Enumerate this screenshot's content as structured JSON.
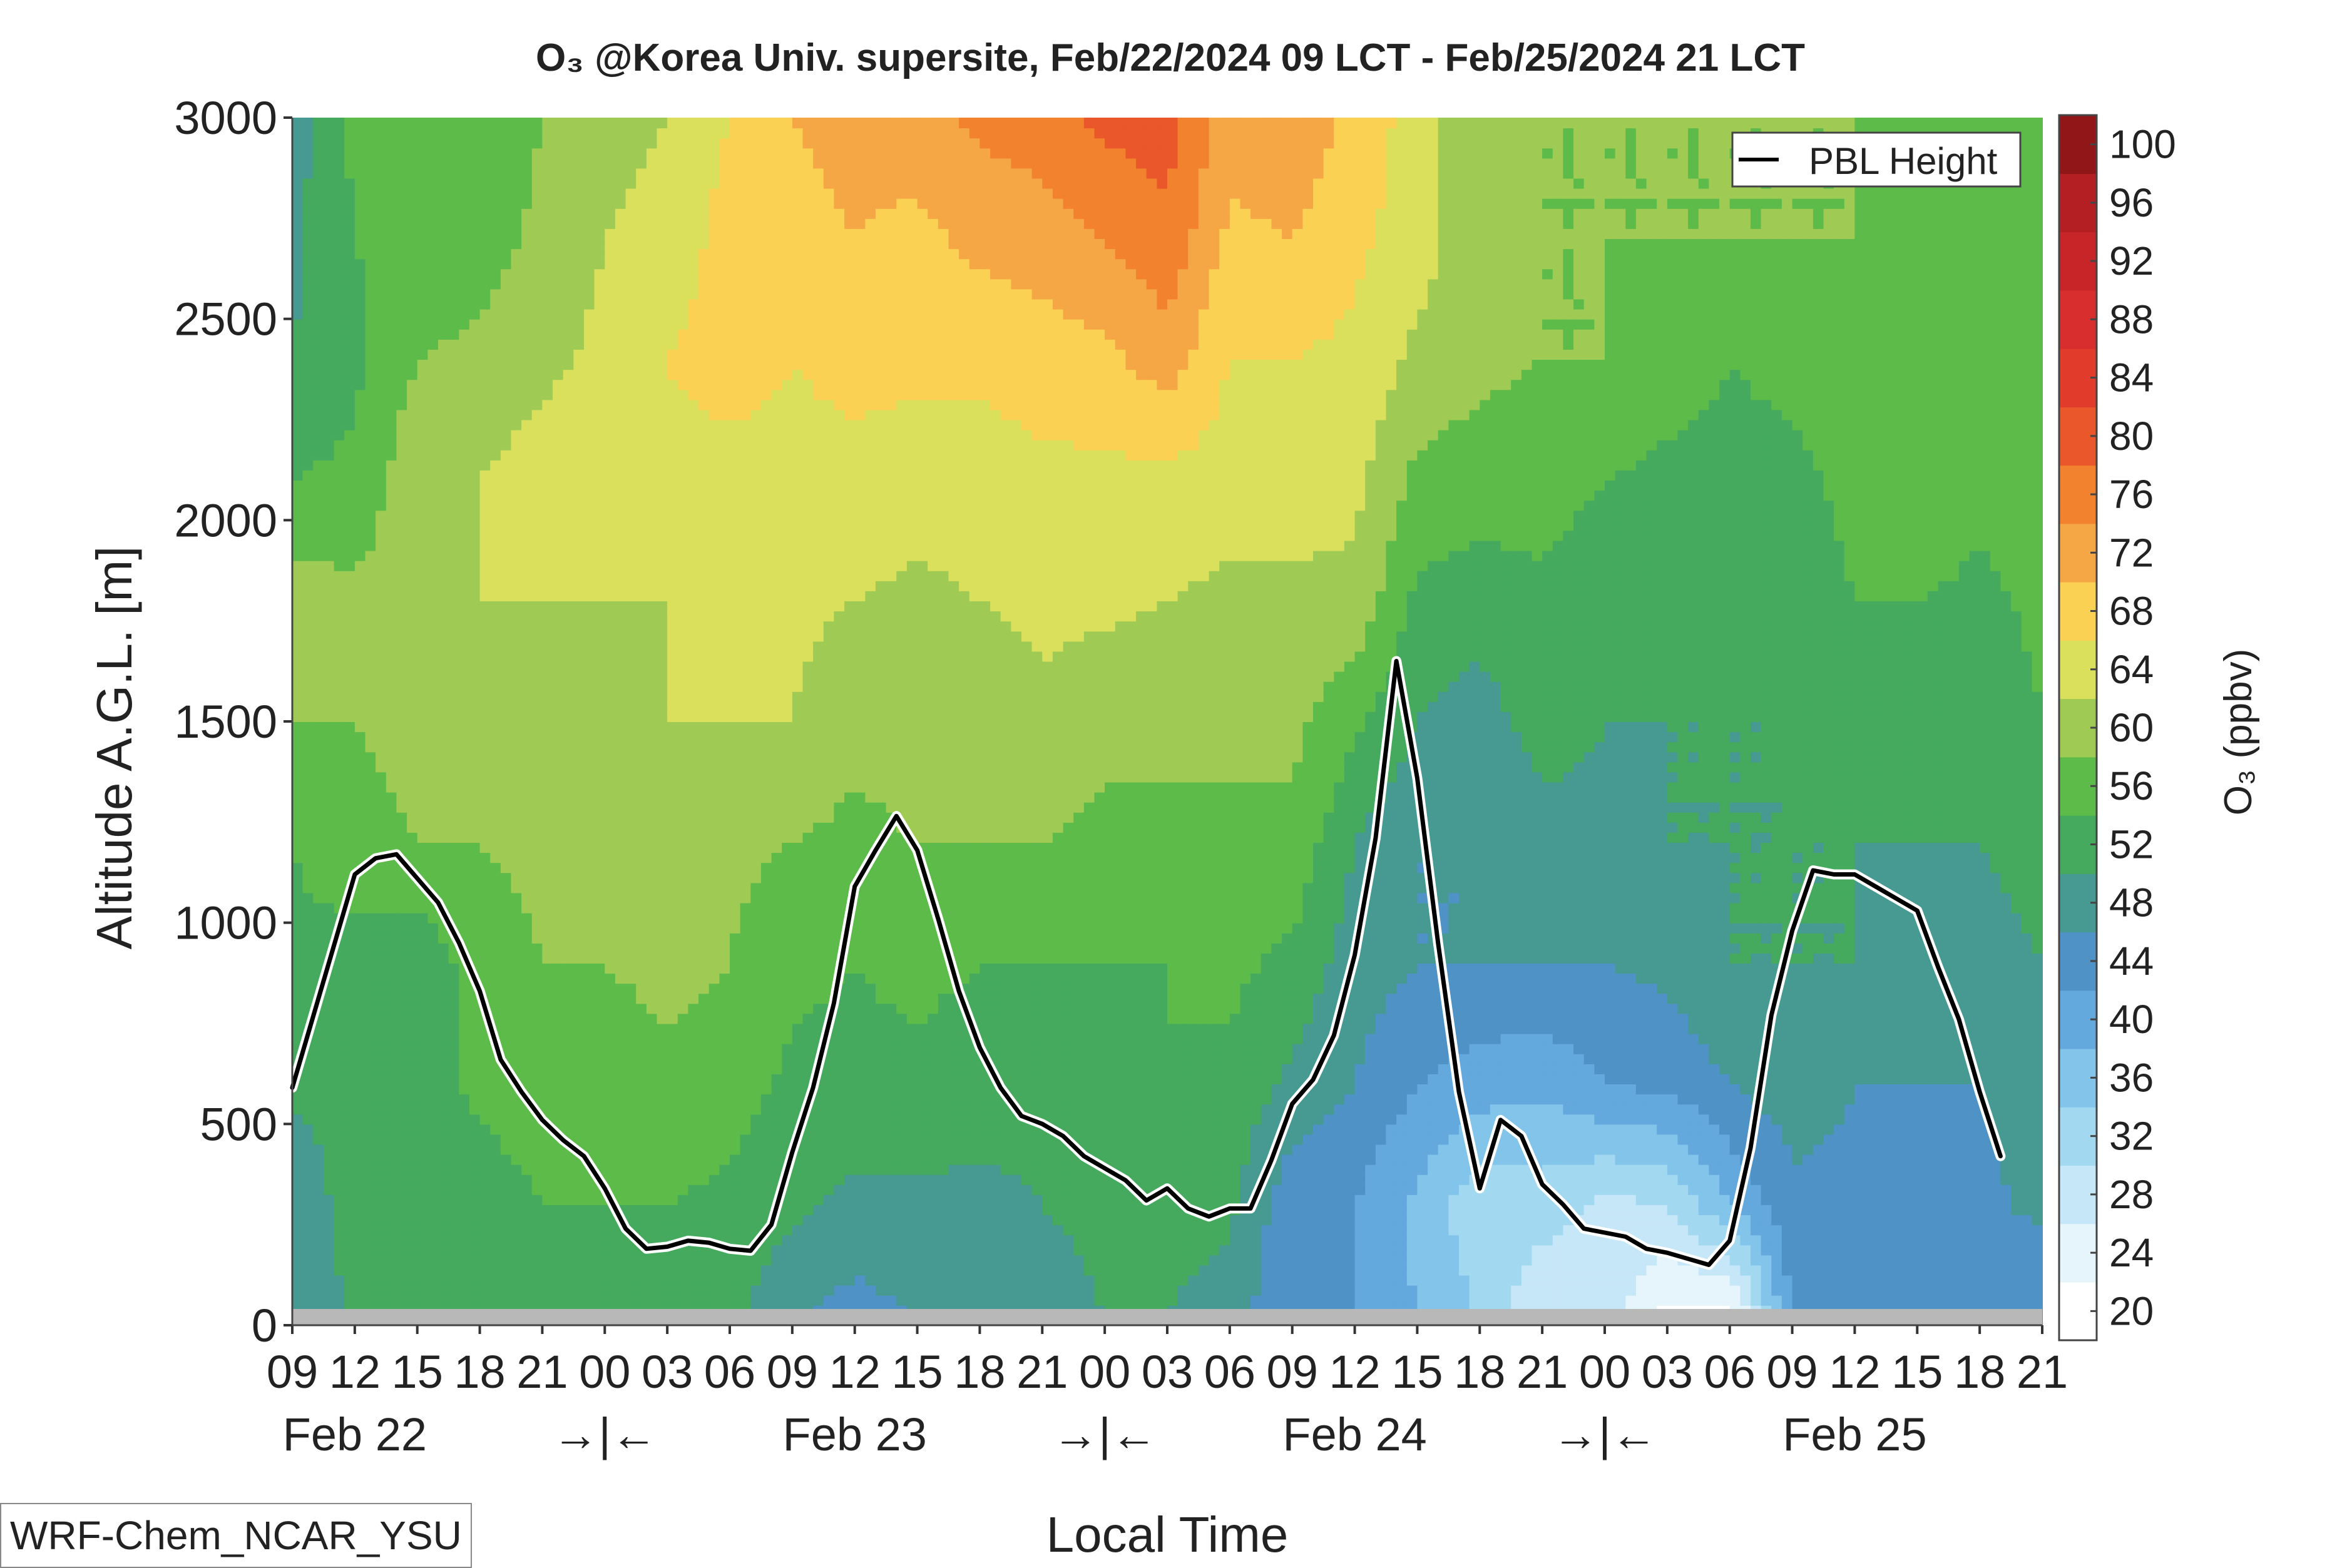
{
  "chart_data": {
    "type": "heatmap",
    "title": "O₃ @Korea Univ. supersite, Feb/22/2024 09 LCT - Feb/25/2024 21 LCT",
    "xlabel": "Local Time",
    "ylabel": "Altitude A.G.L. [m]",
    "ylim": [
      0,
      3000
    ],
    "y_ticks": [
      "0",
      "500",
      "1000",
      "1500",
      "2000",
      "2500",
      "3000"
    ],
    "x_range_hours": [
      0,
      84
    ],
    "x_tick_labels": [
      "09",
      "12",
      "15",
      "18",
      "21",
      "00",
      "03",
      "06",
      "09",
      "12",
      "15",
      "18",
      "21",
      "00",
      "03",
      "06",
      "09",
      "12",
      "15",
      "18",
      "21",
      "00",
      "03",
      "06",
      "09",
      "12",
      "15",
      "18",
      "21"
    ],
    "day_labels": [
      {
        "text": "Feb 22",
        "hour": 3
      },
      {
        "text": "→|←",
        "hour": 15
      },
      {
        "text": "Feb 23",
        "hour": 27
      },
      {
        "text": "→|←",
        "hour": 39
      },
      {
        "text": "Feb 24",
        "hour": 51
      },
      {
        "text": "→|←",
        "hour": 63
      },
      {
        "text": "Feb 25",
        "hour": 75
      }
    ],
    "colorbar": {
      "label": "O₃ (ppbv)",
      "levels": [
        20,
        24,
        28,
        32,
        36,
        40,
        44,
        48,
        52,
        56,
        60,
        64,
        68,
        72,
        76,
        80,
        84,
        88,
        92,
        96,
        100
      ],
      "tick_labels": [
        "20",
        "24",
        "28",
        "32",
        "36",
        "40",
        "44",
        "48",
        "52",
        "56",
        "60",
        "64",
        "68",
        "72",
        "76",
        "80",
        "84",
        "88",
        "92",
        "96",
        "100"
      ],
      "colors": [
        "#ffffff",
        "#e6f4fb",
        "#c6e7f7",
        "#a3d8f1",
        "#83c4ea",
        "#63a9dd",
        "#4f92c6",
        "#469a92",
        "#45aa5e",
        "#5dbb4a",
        "#9fcb55",
        "#dbe05c",
        "#fbd153",
        "#f6a745",
        "#f3822e",
        "#e9572a",
        "#e13b2b",
        "#d82e2e",
        "#c82529",
        "#b41f24",
        "#901618"
      ]
    },
    "legend": {
      "entries": [
        "PBL Height"
      ],
      "placement": "top-right"
    },
    "grid": false,
    "series": [
      {
        "name": "PBL Height",
        "x_hours": [
          0,
          3,
          4,
          5,
          6,
          7,
          8,
          9,
          10,
          11,
          12,
          13,
          14,
          15,
          16,
          17,
          18,
          19,
          20,
          21,
          22,
          23,
          24,
          25,
          26,
          27,
          28,
          29,
          30,
          31,
          32,
          33,
          34,
          35,
          36,
          37,
          38,
          39,
          40,
          41,
          42,
          43,
          44,
          45,
          46,
          47,
          48,
          49,
          50,
          51,
          52,
          53,
          54,
          55,
          56,
          57,
          58,
          59,
          60,
          61,
          62,
          63,
          64,
          65,
          66,
          67,
          68,
          69,
          70,
          71,
          72,
          73,
          74,
          75,
          76,
          77,
          78,
          79,
          80,
          81,
          82,
          83,
          84
        ],
        "values": [
          590,
          1120,
          1160,
          1170,
          1110,
          1050,
          950,
          830,
          660,
          580,
          510,
          460,
          420,
          340,
          240,
          190,
          195,
          210,
          205,
          190,
          185,
          250,
          430,
          590,
          800,
          1090,
          1180,
          1265,
          1180,
          1010,
          830,
          690,
          590,
          520,
          500,
          470,
          420,
          390,
          360,
          310,
          340,
          290,
          270,
          290,
          290,
          410,
          550,
          610,
          720,
          920,
          1210,
          1650,
          1360,
          950,
          580,
          340,
          510,
          470,
          350,
          300,
          240,
          230,
          220,
          190,
          180,
          165,
          150,
          210,
          440,
          770,
          980,
          1130,
          1120,
          1120,
          1090,
          1060,
          1030,
          890,
          760,
          580,
          420
        ]
      }
    ],
    "o3_field": {
      "hours": [
        0,
        3,
        6,
        9,
        12,
        15,
        18,
        21,
        24,
        27,
        30,
        33,
        36,
        39,
        42,
        45,
        48,
        51,
        54,
        57,
        60,
        63,
        66,
        69,
        72,
        75,
        78,
        81,
        84
      ],
      "altitudes_m": [
        0,
        300,
        600,
        900,
        1200,
        1500,
        1800,
        2100,
        2400,
        2700,
        3000
      ],
      "ppbv_by_hour": [
        [
          50,
          49,
          53,
          55,
          56,
          60,
          62,
          56,
          52,
          51,
          50
        ],
        [
          52,
          54,
          53,
          54,
          59,
          60,
          61,
          57,
          55,
          56,
          57
        ],
        [
          53,
          54,
          54,
          53,
          60,
          61,
          62,
          63,
          60,
          57,
          57
        ],
        [
          54,
          54,
          57,
          58,
          60,
          61,
          64,
          64,
          61,
          58,
          57
        ],
        [
          54,
          56,
          58,
          60,
          61,
          62,
          64,
          66,
          63,
          61,
          60
        ],
        [
          53,
          56,
          58,
          60,
          62,
          63,
          64,
          66,
          65,
          64,
          63
        ],
        [
          54,
          56,
          59,
          61,
          62,
          64,
          64,
          67,
          68,
          65,
          64
        ],
        [
          53,
          55,
          58,
          60,
          61,
          64,
          65,
          66,
          70,
          70,
          68
        ],
        [
          48,
          53,
          55,
          57,
          60,
          64,
          65,
          67,
          68,
          71,
          72
        ],
        [
          46,
          51,
          55,
          56,
          59,
          61,
          64,
          67,
          69,
          72,
          73
        ],
        [
          48,
          51,
          55,
          57,
          60,
          62,
          63,
          66,
          69,
          71,
          74
        ],
        [
          50,
          51,
          54,
          56,
          60,
          61,
          64,
          66,
          69,
          73,
          77
        ],
        [
          50,
          52,
          53,
          56,
          60,
          63,
          65,
          67,
          70,
          74,
          78
        ],
        [
          52,
          53,
          54,
          56,
          59,
          61,
          65,
          67,
          71,
          76,
          81
        ],
        [
          52,
          53,
          56,
          56,
          59,
          61,
          64,
          67,
          74,
          79,
          82
        ],
        [
          50,
          53,
          55,
          57,
          59,
          61,
          63,
          66,
          68,
          71,
          74
        ],
        [
          44,
          45,
          51,
          55,
          59,
          61,
          63,
          66,
          68,
          72,
          75
        ],
        [
          44,
          44,
          48,
          50,
          52,
          57,
          63,
          65,
          67,
          69,
          71
        ],
        [
          40,
          39,
          44,
          48,
          48,
          52,
          55,
          59,
          63,
          66,
          66
        ],
        [
          36,
          33,
          42,
          48,
          48,
          50,
          54,
          58,
          61,
          61,
          61
        ],
        [
          28,
          34,
          41,
          48,
          50,
          54,
          55,
          58,
          60,
          60,
          60
        ],
        [
          30,
          31,
          44,
          48,
          51,
          52,
          53,
          56,
          60,
          60,
          60
        ],
        [
          22,
          32,
          45,
          49,
          52,
          52,
          54,
          55,
          58,
          60,
          60
        ],
        [
          20,
          40,
          48,
          52,
          52,
          52,
          55,
          55,
          56,
          60,
          60
        ],
        [
          44,
          47,
          50,
          52,
          52,
          52,
          54,
          55,
          57,
          60,
          60
        ],
        [
          44,
          47,
          48,
          52,
          52,
          53,
          56,
          57,
          58,
          60,
          60
        ],
        [
          45,
          47,
          48,
          49,
          52,
          53,
          56,
          60,
          60,
          59,
          58
        ],
        [
          45,
          47,
          48,
          51,
          52,
          53,
          55,
          57,
          58,
          58,
          60
        ],
        [
          44,
          49,
          50,
          52,
          53,
          56,
          57,
          58,
          60,
          60,
          60
        ]
      ]
    }
  },
  "footer": {
    "model_label": "WRF-Chem_NCAR_YSU"
  }
}
